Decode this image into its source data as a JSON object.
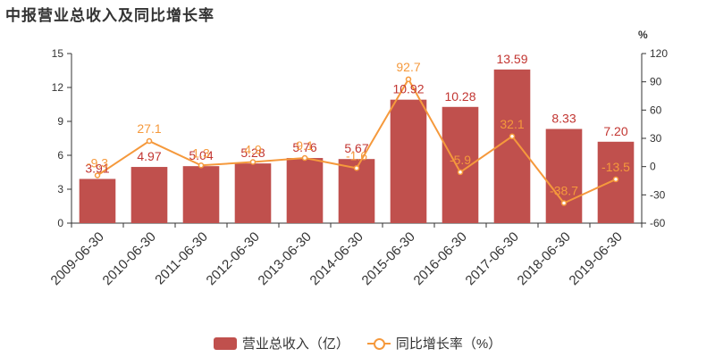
{
  "title": "中报营业总收入及同比增长率",
  "chart_data": {
    "type": "bar",
    "categories": [
      "2009-06-30",
      "2010-06-30",
      "2011-06-30",
      "2012-06-30",
      "2013-06-30",
      "2014-06-30",
      "2015-06-30",
      "2016-06-30",
      "2017-06-30",
      "2018-06-30",
      "2019-06-30"
    ],
    "series": [
      {
        "name": "营业总收入（亿）",
        "type": "bar",
        "axis": "left",
        "color": "#c0504d",
        "values": [
          3.91,
          4.97,
          5.04,
          5.28,
          5.76,
          5.67,
          10.92,
          10.28,
          13.59,
          8.33,
          7.2
        ],
        "labels": [
          "3.91",
          "4.97",
          "5.04",
          "5.28",
          "5.76",
          "5.67",
          "10.92",
          "10.28",
          "13.59",
          "8.33",
          "7.20"
        ]
      },
      {
        "name": "同比增长率（%）",
        "type": "line",
        "axis": "right",
        "color": "#f5993c",
        "values": [
          -9.3,
          27.1,
          1.3,
          4.9,
          9.1,
          -1.6,
          92.7,
          -5.9,
          32.1,
          -38.7,
          -13.5
        ],
        "labels": [
          "-9.3",
          "27.1",
          "1.3",
          "4.9",
          "9.1",
          "-1.6",
          "92.7",
          "-5.9",
          "32.1",
          "-38.7",
          "-13.5"
        ]
      }
    ],
    "y_left": {
      "min": 0,
      "max": 15,
      "ticks": [
        "0",
        "3",
        "6",
        "9",
        "12",
        "15"
      ]
    },
    "y_right": {
      "min": -60,
      "max": 120,
      "ticks": [
        "-60",
        "-30",
        "0",
        "30",
        "60",
        "90",
        "120"
      ],
      "unit": "%"
    },
    "grid": false,
    "legend_position": "bottom"
  }
}
